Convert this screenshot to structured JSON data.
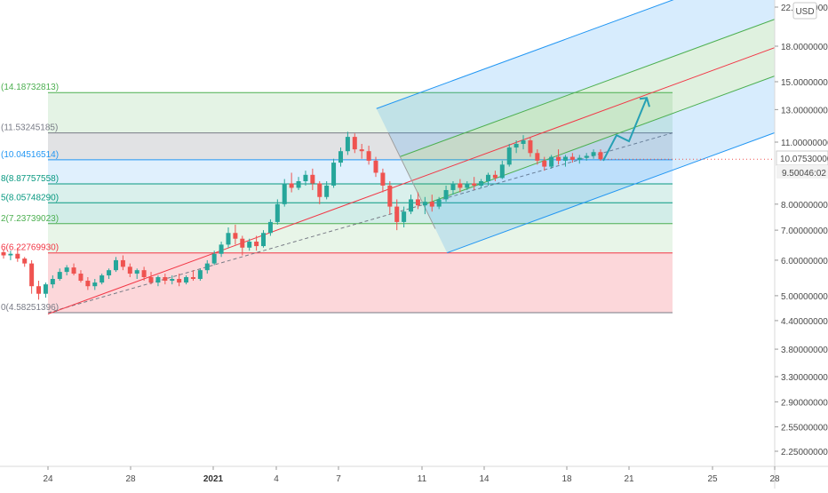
{
  "chart_data": {
    "type": "candlestick",
    "y_scale": "log",
    "currency_badge": "USD",
    "last_price": "10.07530000",
    "countdown": "46:02",
    "partial_price": "9.500",
    "y_ticks": [
      {
        "value": 22.0,
        "label": "22.00000000"
      },
      {
        "value": 18.0,
        "label": "18.00000000"
      },
      {
        "value": 15.0,
        "label": "15.00000000"
      },
      {
        "value": 13.0,
        "label": "13.00000000"
      },
      {
        "value": 11.0,
        "label": "11.00000000"
      },
      {
        "value": 8.0,
        "label": "8.00000000"
      },
      {
        "value": 7.0,
        "label": "7.00000000"
      },
      {
        "value": 6.0,
        "label": "6.00000000"
      },
      {
        "value": 5.0,
        "label": "5.00000000"
      },
      {
        "value": 4.4,
        "label": "4.40000000"
      },
      {
        "value": 3.8,
        "label": "3.80000000"
      },
      {
        "value": 3.3,
        "label": "3.30000000"
      },
      {
        "value": 2.9,
        "label": "2.90000000"
      },
      {
        "value": 2.55,
        "label": "2.55000000"
      },
      {
        "value": 2.25,
        "label": "2.25000000"
      }
    ],
    "x_ticks": [
      {
        "index": 0,
        "label": "24",
        "bold": false
      },
      {
        "index": 4,
        "label": "28",
        "bold": false
      },
      {
        "index": 8,
        "label": "2021",
        "bold": true
      },
      {
        "index": 11,
        "label": "4",
        "bold": false
      },
      {
        "index": 14,
        "label": "7",
        "bold": false
      },
      {
        "index": 18,
        "label": "11",
        "bold": false
      },
      {
        "index": 21,
        "label": "14",
        "bold": false
      },
      {
        "index": 25,
        "label": "18",
        "bold": false
      },
      {
        "index": 28,
        "label": "21",
        "bold": false
      },
      {
        "index": 32,
        "label": "25",
        "bold": false
      },
      {
        "index": 35,
        "label": "28",
        "bold": false
      }
    ],
    "fib_levels": [
      {
        "label": "(14.18732813)",
        "value": 14.18732813,
        "color": "#4caf50"
      },
      {
        "label": "(11.53245185)",
        "value": 11.53245185,
        "color": "#787b86"
      },
      {
        "label": "(10.04516514)",
        "value": 10.04516514,
        "color": "#2196f3"
      },
      {
        "label": "8(8.87757558)",
        "value": 8.87757558,
        "color": "#089981"
      },
      {
        "label": "5(8.05748290)",
        "value": 8.0574829,
        "color": "#089981"
      },
      {
        "label": "2(7.23739023)",
        "value": 7.23739023,
        "color": "#4caf50"
      },
      {
        "label": "6(6.22769930)",
        "value": 6.2276993,
        "color": "#f23645"
      },
      {
        "label": "0(4.58251396)",
        "value": 4.58251396,
        "color": "#787b86"
      }
    ],
    "candles": [
      {
        "o": 6.25,
        "h": 6.35,
        "l": 6.05,
        "c": 6.15
      },
      {
        "o": 6.15,
        "h": 6.3,
        "l": 6.0,
        "c": 6.2
      },
      {
        "o": 6.2,
        "h": 6.4,
        "l": 5.95,
        "c": 6.05
      },
      {
        "o": 6.05,
        "h": 6.1,
        "l": 5.8,
        "c": 5.9
      },
      {
        "o": 5.9,
        "h": 6.0,
        "l": 5.05,
        "c": 5.25
      },
      {
        "o": 5.25,
        "h": 5.4,
        "l": 4.9,
        "c": 5.05
      },
      {
        "o": 5.05,
        "h": 5.35,
        "l": 4.95,
        "c": 5.3
      },
      {
        "o": 5.3,
        "h": 5.55,
        "l": 5.2,
        "c": 5.45
      },
      {
        "o": 5.45,
        "h": 5.75,
        "l": 5.4,
        "c": 5.65
      },
      {
        "o": 5.65,
        "h": 5.85,
        "l": 5.55,
        "c": 5.78
      },
      {
        "o": 5.78,
        "h": 5.9,
        "l": 5.55,
        "c": 5.6
      },
      {
        "o": 5.6,
        "h": 5.7,
        "l": 5.35,
        "c": 5.4
      },
      {
        "o": 5.4,
        "h": 5.5,
        "l": 5.15,
        "c": 5.25
      },
      {
        "o": 5.25,
        "h": 5.45,
        "l": 5.15,
        "c": 5.35
      },
      {
        "o": 5.35,
        "h": 5.6,
        "l": 5.3,
        "c": 5.55
      },
      {
        "o": 5.55,
        "h": 5.75,
        "l": 5.45,
        "c": 5.7
      },
      {
        "o": 5.7,
        "h": 6.1,
        "l": 5.65,
        "c": 6.0
      },
      {
        "o": 6.0,
        "h": 6.15,
        "l": 5.7,
        "c": 5.8
      },
      {
        "o": 5.8,
        "h": 5.9,
        "l": 5.5,
        "c": 5.6
      },
      {
        "o": 5.6,
        "h": 5.75,
        "l": 5.45,
        "c": 5.7
      },
      {
        "o": 5.7,
        "h": 5.8,
        "l": 5.4,
        "c": 5.5
      },
      {
        "o": 5.5,
        "h": 5.65,
        "l": 5.3,
        "c": 5.35
      },
      {
        "o": 5.35,
        "h": 5.55,
        "l": 5.25,
        "c": 5.5
      },
      {
        "o": 5.5,
        "h": 5.6,
        "l": 5.3,
        "c": 5.4
      },
      {
        "o": 5.4,
        "h": 5.55,
        "l": 5.3,
        "c": 5.45
      },
      {
        "o": 5.45,
        "h": 5.6,
        "l": 5.25,
        "c": 5.35
      },
      {
        "o": 5.35,
        "h": 5.55,
        "l": 5.3,
        "c": 5.5
      },
      {
        "o": 5.5,
        "h": 5.7,
        "l": 5.4,
        "c": 5.45
      },
      {
        "o": 5.45,
        "h": 5.75,
        "l": 5.4,
        "c": 5.7
      },
      {
        "o": 5.7,
        "h": 6.0,
        "l": 5.6,
        "c": 5.9
      },
      {
        "o": 5.9,
        "h": 6.3,
        "l": 5.85,
        "c": 6.2
      },
      {
        "o": 6.2,
        "h": 6.6,
        "l": 6.1,
        "c": 6.5
      },
      {
        "o": 6.5,
        "h": 7.1,
        "l": 6.4,
        "c": 6.9
      },
      {
        "o": 6.9,
        "h": 7.2,
        "l": 6.5,
        "c": 6.7
      },
      {
        "o": 6.7,
        "h": 6.8,
        "l": 6.15,
        "c": 6.4
      },
      {
        "o": 6.4,
        "h": 6.7,
        "l": 6.3,
        "c": 6.6
      },
      {
        "o": 6.6,
        "h": 6.8,
        "l": 6.3,
        "c": 6.45
      },
      {
        "o": 6.45,
        "h": 7.0,
        "l": 6.4,
        "c": 6.9
      },
      {
        "o": 6.9,
        "h": 7.4,
        "l": 6.8,
        "c": 7.3
      },
      {
        "o": 7.3,
        "h": 8.2,
        "l": 7.2,
        "c": 8.0
      },
      {
        "o": 8.0,
        "h": 9.1,
        "l": 7.9,
        "c": 8.9
      },
      {
        "o": 8.9,
        "h": 9.4,
        "l": 8.5,
        "c": 8.7
      },
      {
        "o": 8.7,
        "h": 9.2,
        "l": 8.6,
        "c": 9.0
      },
      {
        "o": 9.0,
        "h": 9.5,
        "l": 8.8,
        "c": 9.3
      },
      {
        "o": 9.3,
        "h": 9.6,
        "l": 8.6,
        "c": 8.9
      },
      {
        "o": 8.9,
        "h": 9.0,
        "l": 8.0,
        "c": 8.3
      },
      {
        "o": 8.3,
        "h": 9.0,
        "l": 8.2,
        "c": 8.8
      },
      {
        "o": 8.8,
        "h": 10.1,
        "l": 8.7,
        "c": 9.9
      },
      {
        "o": 9.9,
        "h": 10.7,
        "l": 9.7,
        "c": 10.5
      },
      {
        "o": 10.5,
        "h": 11.6,
        "l": 10.3,
        "c": 11.3
      },
      {
        "o": 11.3,
        "h": 11.5,
        "l": 10.4,
        "c": 10.6
      },
      {
        "o": 10.6,
        "h": 10.9,
        "l": 10.1,
        "c": 10.5
      },
      {
        "o": 10.5,
        "h": 10.8,
        "l": 9.8,
        "c": 10.0
      },
      {
        "o": 10.0,
        "h": 10.2,
        "l": 9.2,
        "c": 9.4
      },
      {
        "o": 9.4,
        "h": 9.6,
        "l": 8.5,
        "c": 8.8
      },
      {
        "o": 8.8,
        "h": 9.0,
        "l": 7.6,
        "c": 7.9
      },
      {
        "o": 7.9,
        "h": 8.2,
        "l": 7.0,
        "c": 7.3
      },
      {
        "o": 7.3,
        "h": 7.9,
        "l": 7.1,
        "c": 7.7
      },
      {
        "o": 7.7,
        "h": 8.4,
        "l": 7.6,
        "c": 8.2
      },
      {
        "o": 8.2,
        "h": 8.5,
        "l": 7.8,
        "c": 7.95
      },
      {
        "o": 7.95,
        "h": 8.3,
        "l": 7.6,
        "c": 8.1
      },
      {
        "o": 8.1,
        "h": 8.4,
        "l": 7.7,
        "c": 7.9
      },
      {
        "o": 7.9,
        "h": 8.3,
        "l": 7.8,
        "c": 8.2
      },
      {
        "o": 8.2,
        "h": 8.8,
        "l": 8.1,
        "c": 8.6
      },
      {
        "o": 8.6,
        "h": 9.0,
        "l": 8.4,
        "c": 8.9
      },
      {
        "o": 8.9,
        "h": 9.1,
        "l": 8.5,
        "c": 8.7
      },
      {
        "o": 8.7,
        "h": 9.0,
        "l": 8.6,
        "c": 8.9
      },
      {
        "o": 8.9,
        "h": 9.2,
        "l": 8.6,
        "c": 8.8
      },
      {
        "o": 8.8,
        "h": 9.1,
        "l": 8.7,
        "c": 9.0
      },
      {
        "o": 9.0,
        "h": 9.4,
        "l": 8.8,
        "c": 9.3
      },
      {
        "o": 9.3,
        "h": 9.5,
        "l": 9.0,
        "c": 9.15
      },
      {
        "o": 9.15,
        "h": 10.0,
        "l": 9.1,
        "c": 9.8
      },
      {
        "o": 9.8,
        "h": 10.9,
        "l": 9.7,
        "c": 10.7
      },
      {
        "o": 10.7,
        "h": 11.1,
        "l": 10.4,
        "c": 10.9
      },
      {
        "o": 10.9,
        "h": 11.4,
        "l": 10.6,
        "c": 11.1
      },
      {
        "o": 11.1,
        "h": 11.3,
        "l": 10.2,
        "c": 10.4
      },
      {
        "o": 10.4,
        "h": 10.6,
        "l": 9.8,
        "c": 10.0
      },
      {
        "o": 10.0,
        "h": 10.2,
        "l": 9.5,
        "c": 9.7
      },
      {
        "o": 9.7,
        "h": 10.3,
        "l": 9.6,
        "c": 10.2
      },
      {
        "o": 10.2,
        "h": 10.6,
        "l": 9.8,
        "c": 10.0
      },
      {
        "o": 10.0,
        "h": 10.3,
        "l": 9.7,
        "c": 10.2
      },
      {
        "o": 10.2,
        "h": 10.4,
        "l": 9.9,
        "c": 10.05
      },
      {
        "o": 10.05,
        "h": 10.3,
        "l": 9.85,
        "c": 10.15
      },
      {
        "o": 10.15,
        "h": 10.4,
        "l": 10.0,
        "c": 10.25
      },
      {
        "o": 10.25,
        "h": 10.6,
        "l": 10.1,
        "c": 10.45
      },
      {
        "o": 10.45,
        "h": 10.6,
        "l": 10.0,
        "c": 10.08
      }
    ],
    "projection_arrow": [
      {
        "index": 29.2,
        "value": 10.0
      },
      {
        "index": 30.4,
        "value": 11.4
      },
      {
        "index": 31.6,
        "value": 11.1
      },
      {
        "index": 33.0,
        "value": 13.8
      },
      {
        "index": 33.3,
        "value": 13.1
      }
    ]
  }
}
